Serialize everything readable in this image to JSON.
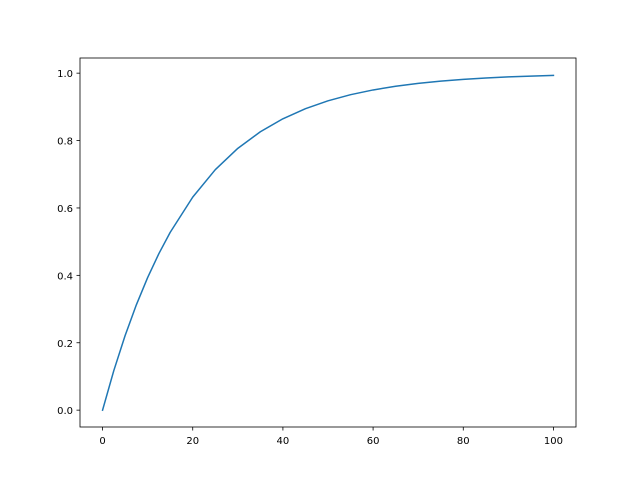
{
  "chart_data": {
    "type": "line",
    "title": "",
    "xlabel": "",
    "ylabel": "",
    "xlim": [
      -5,
      105
    ],
    "ylim": [
      -0.05,
      1.045
    ],
    "xticks": [
      0,
      20,
      40,
      60,
      80,
      100
    ],
    "xtick_labels": [
      "0",
      "20",
      "40",
      "60",
      "80",
      "100"
    ],
    "yticks": [
      0.0,
      0.2,
      0.4,
      0.6,
      0.8,
      1.0
    ],
    "ytick_labels": [
      "0.0",
      "0.2",
      "0.4",
      "0.6",
      "0.8",
      "1.0"
    ],
    "grid": false,
    "series": [
      {
        "color": "#1f77b4",
        "x": [
          0,
          2.5,
          5,
          7.5,
          10,
          12.5,
          15,
          20,
          25,
          30,
          35,
          40,
          45,
          50,
          55,
          60,
          65,
          70,
          75,
          80,
          85,
          90,
          95,
          100
        ],
        "y": [
          0,
          0.1175,
          0.2212,
          0.3127,
          0.3935,
          0.4647,
          0.5276,
          0.6321,
          0.7135,
          0.7769,
          0.8262,
          0.8647,
          0.8946,
          0.9179,
          0.9361,
          0.9502,
          0.9612,
          0.9698,
          0.9765,
          0.9817,
          0.9857,
          0.9889,
          0.9913,
          0.9933
        ]
      }
    ]
  }
}
